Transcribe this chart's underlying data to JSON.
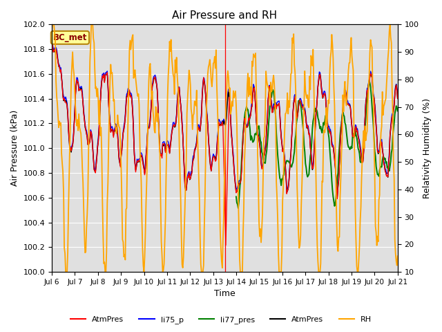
{
  "title": "Air Pressure and RH",
  "ylabel_left": "Air Pressure (kPa)",
  "ylabel_right": "Relativity Humidity (%)",
  "xlabel": "Time",
  "xlim_start": 6,
  "xlim_end": 21,
  "ylim_left": [
    100.0,
    102.0
  ],
  "ylim_right": [
    10,
    100
  ],
  "xtick_labels": [
    "Jul 6",
    "Jul 7",
    "Jul 8",
    "Jul 9",
    "Jul 10",
    "Jul 11",
    "Jul 12",
    "Jul 13",
    "Jul 14",
    "Jul 15",
    "Jul 16",
    "Jul 17",
    "Jul 18",
    "Jul 19",
    "Jul 20",
    "Jul 21"
  ],
  "ytick_left": [
    100.0,
    100.2,
    100.4,
    100.6,
    100.8,
    101.0,
    101.2,
    101.4,
    101.6,
    101.8,
    102.0
  ],
  "ytick_right": [
    10,
    20,
    30,
    40,
    50,
    60,
    70,
    80,
    90,
    100
  ],
  "legend_entries": [
    "AtmPres",
    "li75_p",
    "li77_pres",
    "AtmPres",
    "RH"
  ],
  "legend_colors": [
    "red",
    "blue",
    "green",
    "black",
    "orange"
  ],
  "annotation_label": "BC_met",
  "background_color": "#e0e0e0",
  "grid_color": "white",
  "vertical_line_x": 13.53,
  "vertical_line_color": "red",
  "n_points": 500,
  "seed": 7
}
